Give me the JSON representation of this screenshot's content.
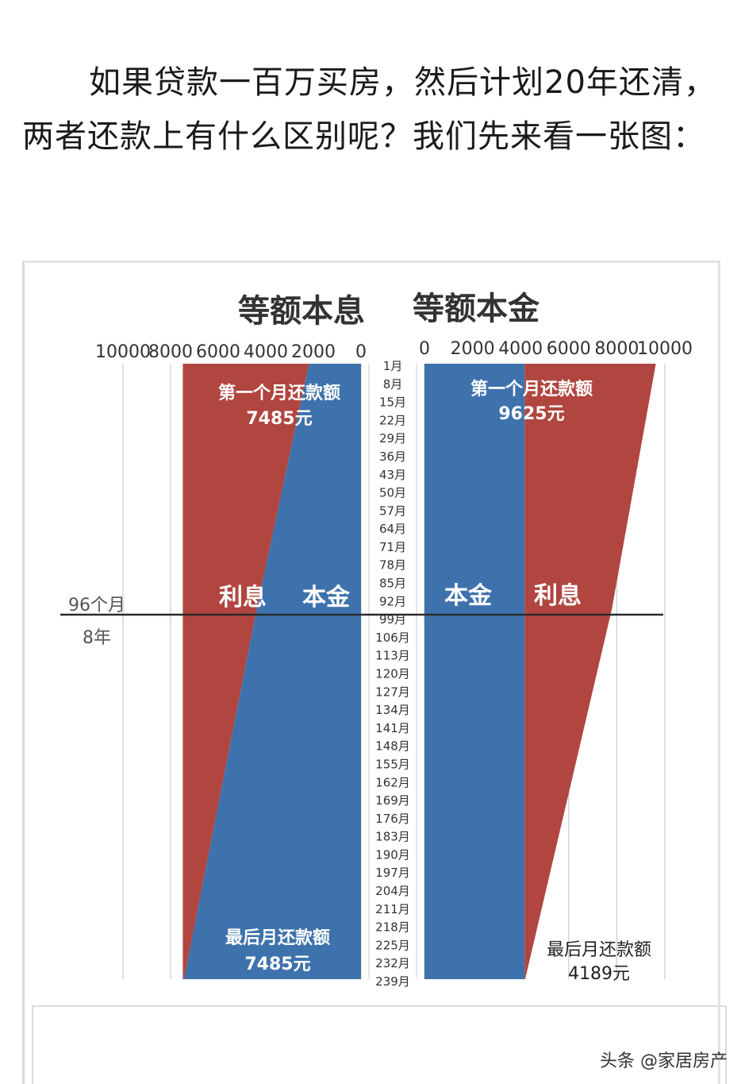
{
  "intro_text": "如果贷款一百万买房，然后计划20年还清，两者还款上有什么区别呢？我们先来看一张图：",
  "watermark": "头条 @家居房产",
  "colors": {
    "interest": "#b1453f",
    "principal": "#3e72ac",
    "axis_line": "#2a2a2a",
    "grid": "#cccccc"
  },
  "chart_data": [
    {
      "type": "area",
      "title": "等额本息",
      "axis_direction": "reversed",
      "xlim": [
        0,
        10000
      ],
      "x_ticks": [
        "10000",
        "8000",
        "6000",
        "4000",
        "2000",
        "0"
      ],
      "months": [
        1,
        96,
        239
      ],
      "series": [
        {
          "name": "利息",
          "values": [
            5300,
            3100,
            50
          ]
        },
        {
          "name": "本金",
          "values": [
            2185,
            4385,
            7435
          ]
        }
      ],
      "region_labels": [
        "利息",
        "本金"
      ],
      "top_annotation": {
        "line1": "第一个月还款额",
        "line2": "7485元"
      },
      "bottom_annotation": {
        "line1": "最后月还款额",
        "line2": "7485元"
      }
    },
    {
      "type": "area",
      "title": "等额本金",
      "xlim": [
        0,
        10000
      ],
      "x_ticks": [
        "0",
        "2000",
        "4000",
        "6000",
        "8000",
        "10000"
      ],
      "months": [
        1,
        96,
        239
      ],
      "series": [
        {
          "name": "本金",
          "values": [
            4167,
            4167,
            4167
          ]
        },
        {
          "name": "利息",
          "values": [
            5458,
            3625,
            22
          ]
        }
      ],
      "region_labels": [
        "本金",
        "利息"
      ],
      "top_annotation": {
        "line1": "第一个月还款额",
        "line2": "9625元"
      },
      "bottom_annotation": {
        "line1": "最后月还款额",
        "line2": "4189元"
      }
    }
  ],
  "month_labels": [
    "1月",
    "8月",
    "15月",
    "22月",
    "29月",
    "36月",
    "43月",
    "50月",
    "57月",
    "64月",
    "71月",
    "78月",
    "85月",
    "92月",
    "99月",
    "106月",
    "113月",
    "120月",
    "127月",
    "134月",
    "141月",
    "148月",
    "155月",
    "162月",
    "169月",
    "176月",
    "183月",
    "190月",
    "197月",
    "204月",
    "211月",
    "218月",
    "225月",
    "232月",
    "239月"
  ],
  "marker": {
    "line1": "96个月",
    "line2": "8年",
    "month": 96
  }
}
